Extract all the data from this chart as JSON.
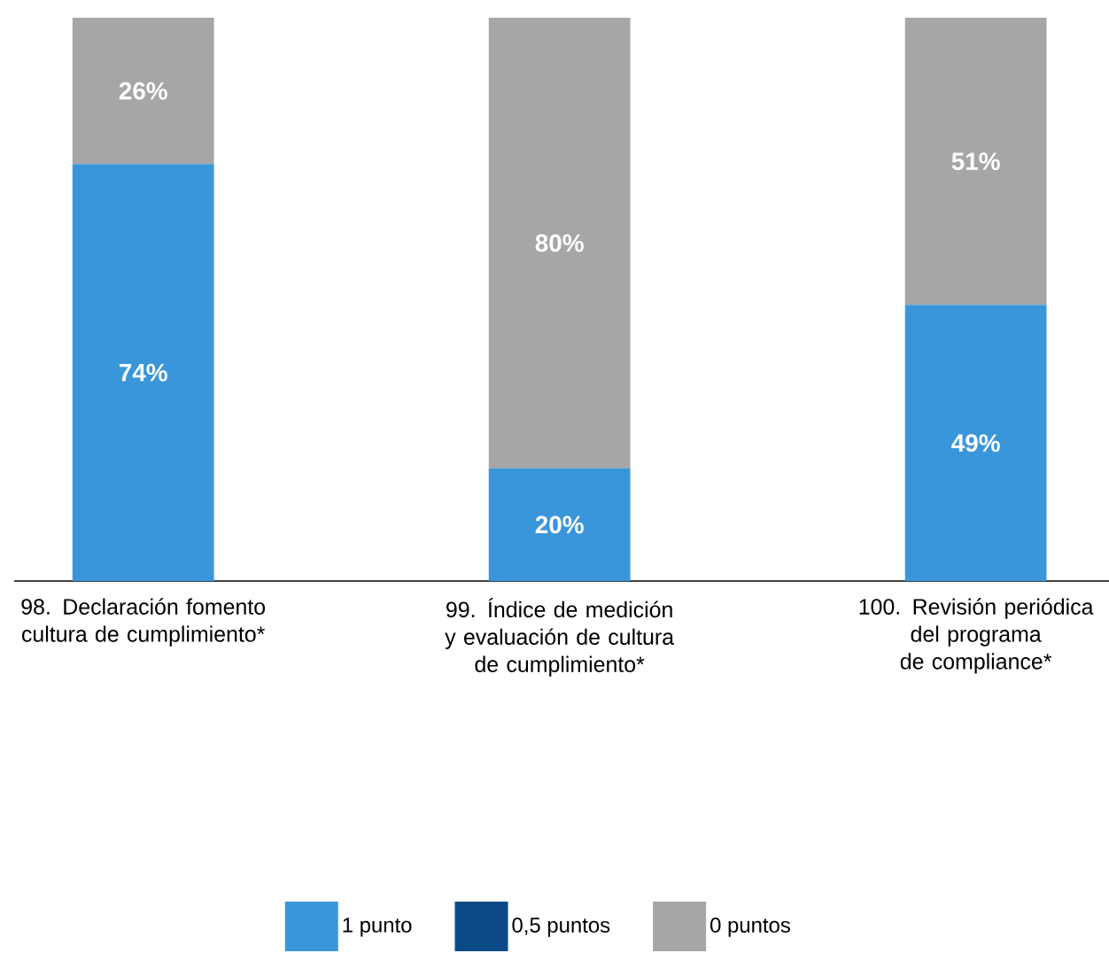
{
  "chart_data": {
    "type": "bar",
    "stacked": true,
    "categories": [
      "98. Declaración fomento cultura de cumplimiento*",
      "99. Índice de medición y evaluación de cultura de cumplimiento*",
      "100. Revisión periódica del programa de compliance*"
    ],
    "legend": "bottom",
    "series": [
      {
        "name": "1 punto",
        "color": "#3a96db",
        "values": [
          74,
          20,
          49
        ],
        "value_labels": [
          "74%",
          "20%",
          "49%"
        ]
      },
      {
        "name": "0,5 puntos",
        "color": "#0b4a86",
        "values": [
          null,
          null,
          null
        ]
      },
      {
        "name": "0 puntos",
        "color": "#a6a6a6",
        "values": [
          26,
          80,
          51
        ],
        "value_labels": [
          "26%",
          "80%",
          "51%"
        ]
      }
    ]
  }
}
